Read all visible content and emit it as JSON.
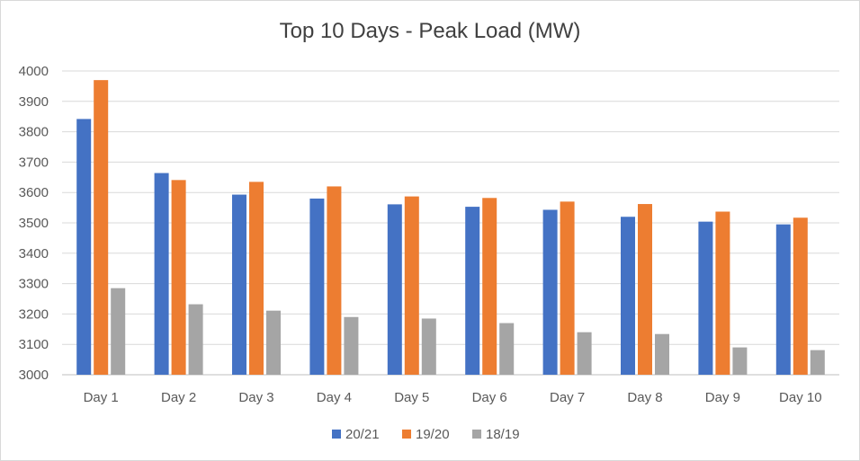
{
  "chart_data": {
    "type": "bar",
    "title": "Top 10 Days - Peak Load (MW)",
    "xlabel": "",
    "ylabel": "",
    "categories": [
      "Day 1",
      "Day 2",
      "Day 3",
      "Day 4",
      "Day 5",
      "Day 6",
      "Day 7",
      "Day 8",
      "Day 9",
      "Day 10"
    ],
    "series": [
      {
        "name": "20/21",
        "color": "#4472c4",
        "values": [
          3842,
          3664,
          3593,
          3580,
          3561,
          3553,
          3543,
          3520,
          3504,
          3495
        ]
      },
      {
        "name": "19/20",
        "color": "#ed7d31",
        "values": [
          3970,
          3641,
          3635,
          3620,
          3587,
          3582,
          3570,
          3562,
          3537,
          3517
        ]
      },
      {
        "name": "18/19",
        "color": "#a5a5a5",
        "values": [
          3285,
          3232,
          3211,
          3190,
          3185,
          3170,
          3140,
          3134,
          3090,
          3081
        ]
      }
    ],
    "ylim": [
      3000,
      4000
    ],
    "yticks": [
      3000,
      3100,
      3200,
      3300,
      3400,
      3500,
      3600,
      3700,
      3800,
      3900,
      4000
    ],
    "grid": true,
    "legend_position": "bottom"
  }
}
